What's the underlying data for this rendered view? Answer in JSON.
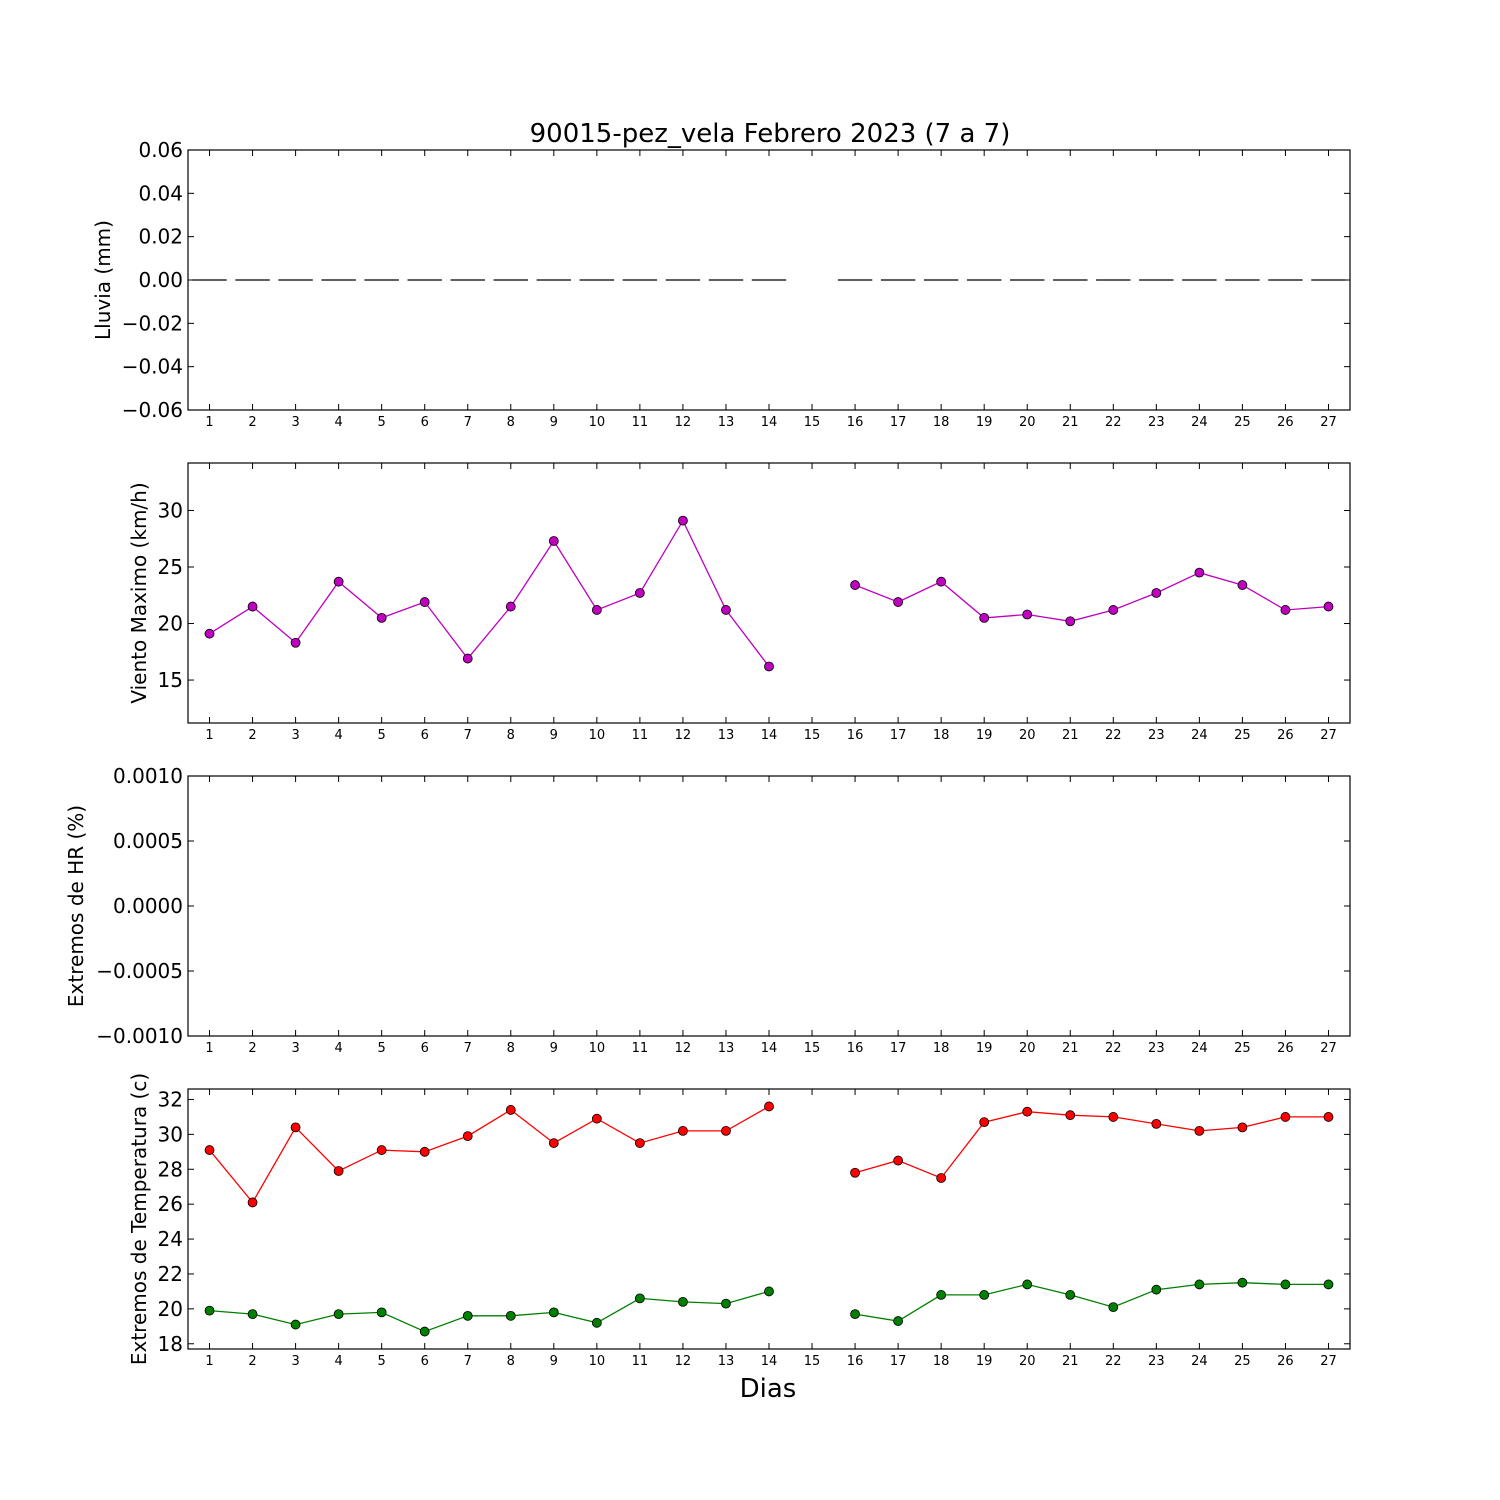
{
  "figure": {
    "title": "90015-pez_vela Febrero 2023  (7 a 7)",
    "xlabel": "Dias"
  },
  "chart_data": [
    {
      "type": "line",
      "ylabel": "Lluvia (mm)",
      "ylim": [
        -0.06,
        0.06
      ],
      "yticks": [
        0.06,
        0.04,
        0.02,
        0.0,
        -0.02,
        -0.04,
        -0.06
      ],
      "ytick_labels": [
        "0.06",
        "0.04",
        "0.02",
        "0.00",
        "−0.02",
        "−0.04",
        "−0.06"
      ],
      "x": [
        1,
        2,
        3,
        4,
        5,
        6,
        7,
        8,
        9,
        10,
        11,
        12,
        13,
        14,
        15,
        16,
        17,
        18,
        19,
        20,
        21,
        22,
        23,
        24,
        25,
        26,
        27
      ],
      "xlim": [
        0.5,
        27.5
      ],
      "grid": false,
      "bar_style": "horizontal-dash",
      "series": [
        {
          "color": "#000000",
          "values": [
            0,
            0,
            0,
            0,
            0,
            0,
            0,
            0,
            0,
            0,
            0,
            0,
            0,
            0,
            null,
            0,
            0,
            0,
            0,
            0,
            0,
            0,
            0,
            0,
            0,
            0,
            0
          ]
        }
      ]
    },
    {
      "type": "line",
      "ylabel": "Viento Maximo (km/h)",
      "ylim": [
        11.2,
        34.2
      ],
      "yticks": [
        15,
        20,
        25,
        30
      ],
      "ytick_labels": [
        "15",
        "20",
        "25",
        "30"
      ],
      "x": [
        1,
        2,
        3,
        4,
        5,
        6,
        7,
        8,
        9,
        10,
        11,
        12,
        13,
        14,
        15,
        16,
        17,
        18,
        19,
        20,
        21,
        22,
        23,
        24,
        25,
        26,
        27
      ],
      "xlim": [
        0.5,
        27.5
      ],
      "grid": false,
      "series": [
        {
          "color": "#bf00bf",
          "values": [
            19.1,
            21.5,
            18.3,
            23.7,
            20.5,
            21.9,
            16.9,
            21.5,
            27.3,
            21.2,
            22.7,
            29.1,
            21.2,
            16.2,
            null,
            23.4,
            21.9,
            23.7,
            20.5,
            20.8,
            20.2,
            21.2,
            22.7,
            24.5,
            23.4,
            21.2,
            21.5
          ]
        }
      ]
    },
    {
      "type": "line",
      "ylabel": "Extremos de HR (%)",
      "ylim": [
        -0.001,
        0.001
      ],
      "yticks": [
        0.001,
        0.0005,
        0.0,
        -0.0005,
        -0.001
      ],
      "ytick_labels": [
        "0.0010",
        "0.0005",
        "0.0000",
        "−0.0005",
        "−0.0010"
      ],
      "x": [
        1,
        2,
        3,
        4,
        5,
        6,
        7,
        8,
        9,
        10,
        11,
        12,
        13,
        14,
        15,
        16,
        17,
        18,
        19,
        20,
        21,
        22,
        23,
        24,
        25,
        26,
        27
      ],
      "xlim": [
        0.5,
        27.5
      ],
      "grid": false,
      "series": []
    },
    {
      "type": "line",
      "ylabel": "Extremos de Temperatura (c)",
      "ylim": [
        17.7,
        32.6
      ],
      "yticks": [
        18,
        20,
        22,
        24,
        26,
        28,
        30,
        32
      ],
      "ytick_labels": [
        "18",
        "20",
        "22",
        "24",
        "26",
        "28",
        "30",
        "32"
      ],
      "x": [
        1,
        2,
        3,
        4,
        5,
        6,
        7,
        8,
        9,
        10,
        11,
        12,
        13,
        14,
        15,
        16,
        17,
        18,
        19,
        20,
        21,
        22,
        23,
        24,
        25,
        26,
        27
      ],
      "xlim": [
        0.5,
        27.5
      ],
      "grid": false,
      "series": [
        {
          "color": "#ff0000",
          "values": [
            29.1,
            26.1,
            30.4,
            27.9,
            29.1,
            29.0,
            29.9,
            31.4,
            29.5,
            30.9,
            29.5,
            30.2,
            30.2,
            31.6,
            null,
            27.8,
            28.5,
            27.5,
            30.7,
            31.3,
            31.1,
            31.0,
            30.6,
            30.2,
            30.4,
            31.0,
            31.0
          ]
        },
        {
          "color": "#007f00",
          "values": [
            19.9,
            19.7,
            19.1,
            19.7,
            19.8,
            18.7,
            19.6,
            19.6,
            19.8,
            19.2,
            20.6,
            20.4,
            20.3,
            21.0,
            null,
            19.7,
            19.3,
            20.8,
            20.8,
            21.4,
            20.8,
            20.1,
            21.1,
            21.4,
            21.5,
            21.4,
            21.4
          ]
        }
      ]
    }
  ]
}
